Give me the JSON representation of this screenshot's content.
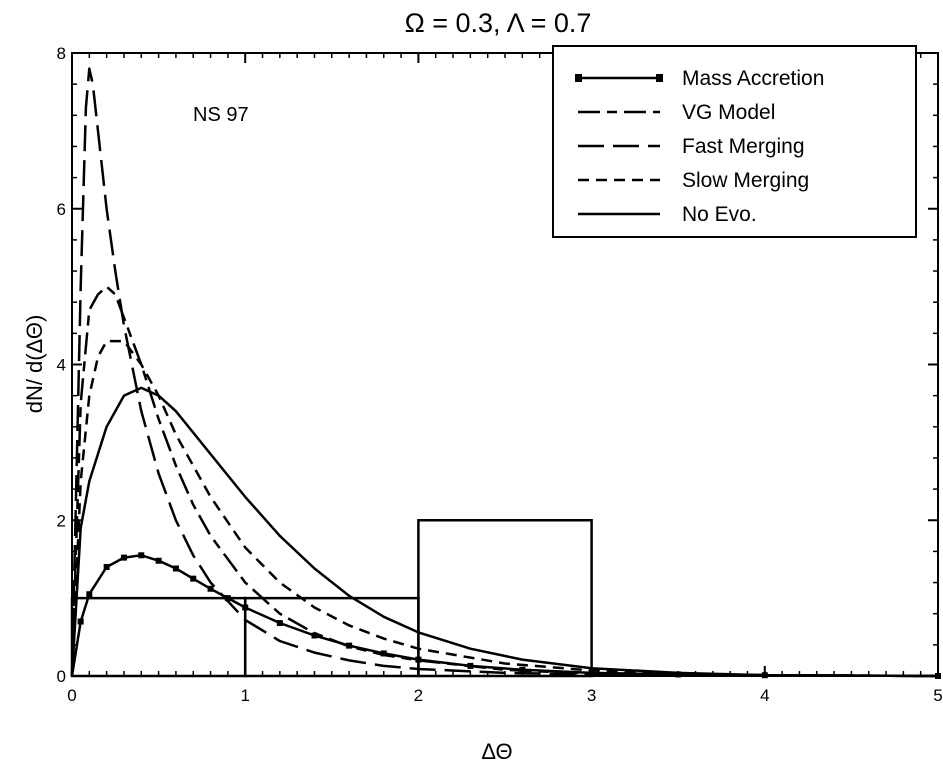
{
  "chart_data": {
    "type": "line",
    "title": "Ω = 0.3, Λ = 0.7",
    "xlabel": "ΔΘ",
    "ylabel": "dN/ d(ΔΘ)",
    "xlim": [
      0,
      5
    ],
    "ylim": [
      0,
      8
    ],
    "xticks": [
      0,
      1,
      2,
      3,
      4,
      5
    ],
    "yticks": [
      0,
      2,
      4,
      6,
      8
    ],
    "grid": false,
    "legend_position": "top-right",
    "annotation": "NS 97",
    "histogram": {
      "bins": [
        [
          0,
          1
        ],
        [
          1,
          2
        ],
        [
          2,
          3
        ]
      ],
      "counts": [
        1,
        1,
        2
      ]
    },
    "series": [
      {
        "name": "Mass Accretion",
        "style": "solid-with-markers",
        "x": [
          0,
          0.05,
          0.1,
          0.2,
          0.3,
          0.4,
          0.5,
          0.6,
          0.7,
          0.8,
          0.9,
          1.0,
          1.2,
          1.4,
          1.6,
          1.8,
          2.0,
          2.3,
          2.6,
          3.0,
          3.5,
          4.0,
          5.0
        ],
        "y": [
          0,
          0.7,
          1.05,
          1.4,
          1.52,
          1.55,
          1.48,
          1.38,
          1.25,
          1.12,
          1.0,
          0.88,
          0.68,
          0.52,
          0.39,
          0.29,
          0.21,
          0.13,
          0.08,
          0.04,
          0.02,
          0.01,
          0
        ]
      },
      {
        "name": "VG Model",
        "style": "dash-short-long",
        "x": [
          0,
          0.05,
          0.1,
          0.15,
          0.2,
          0.25,
          0.3,
          0.4,
          0.5,
          0.6,
          0.7,
          0.8,
          1.0,
          1.2,
          1.4,
          1.6,
          1.8,
          2.0,
          2.5,
          3.0,
          4.0,
          5.0
        ],
        "y": [
          0,
          3.5,
          4.7,
          4.9,
          5.0,
          4.9,
          4.6,
          4.0,
          3.3,
          2.7,
          2.2,
          1.8,
          1.2,
          0.8,
          0.55,
          0.38,
          0.27,
          0.2,
          0.08,
          0.03,
          0.01,
          0
        ]
      },
      {
        "name": "Fast Merging",
        "style": "long-dash",
        "x": [
          0,
          0.05,
          0.08,
          0.1,
          0.12,
          0.15,
          0.2,
          0.25,
          0.3,
          0.4,
          0.5,
          0.6,
          0.7,
          0.8,
          1.0,
          1.2,
          1.4,
          1.6,
          1.8,
          2.0,
          2.5,
          3.0,
          4.0,
          5.0
        ],
        "y": [
          0,
          5.0,
          7.3,
          7.8,
          7.6,
          7.0,
          6.0,
          5.2,
          4.5,
          3.4,
          2.6,
          2.0,
          1.55,
          1.2,
          0.72,
          0.45,
          0.3,
          0.2,
          0.13,
          0.09,
          0.04,
          0.02,
          0.01,
          0
        ]
      },
      {
        "name": "Slow Merging",
        "style": "short-dash",
        "x": [
          0,
          0.05,
          0.1,
          0.15,
          0.2,
          0.3,
          0.4,
          0.5,
          0.6,
          0.7,
          0.8,
          1.0,
          1.2,
          1.4,
          1.6,
          1.8,
          2.0,
          2.5,
          3.0,
          3.5,
          4.0,
          5.0
        ],
        "y": [
          0,
          2.5,
          3.6,
          4.1,
          4.3,
          4.3,
          4.0,
          3.6,
          3.1,
          2.7,
          2.3,
          1.65,
          1.2,
          0.88,
          0.65,
          0.48,
          0.35,
          0.16,
          0.07,
          0.03,
          0.01,
          0
        ]
      },
      {
        "name": "No Evo.",
        "style": "solid",
        "x": [
          0,
          0.05,
          0.1,
          0.2,
          0.3,
          0.4,
          0.5,
          0.6,
          0.8,
          1.0,
          1.2,
          1.4,
          1.6,
          1.8,
          2.0,
          2.3,
          2.6,
          3.0,
          3.5,
          4.0,
          4.5,
          5.0
        ],
        "y": [
          0,
          1.9,
          2.5,
          3.2,
          3.6,
          3.7,
          3.6,
          3.4,
          2.85,
          2.3,
          1.8,
          1.38,
          1.03,
          0.76,
          0.56,
          0.35,
          0.21,
          0.1,
          0.04,
          0.01,
          0.005,
          0
        ]
      }
    ]
  }
}
